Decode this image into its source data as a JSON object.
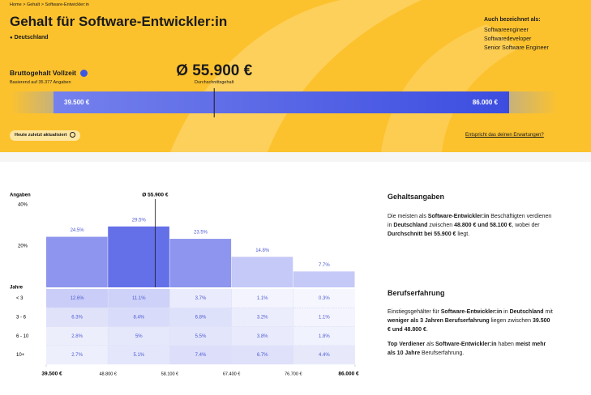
{
  "header": {
    "breadcrumb": [
      "Home",
      "Gehalt",
      "Software-Entwickler:in"
    ],
    "breadcrumb_separator": ">",
    "title": "Gehalt für Software-Entwickler:in",
    "location": "Deutschland",
    "aliases_heading": "Auch bezeichnet als:",
    "aliases": [
      "Softwareengineer",
      "Softwaredeveloper",
      "Senior Software Engineer"
    ]
  },
  "salary": {
    "label": "Bruttogehalt Vollzeit",
    "basis": "Basierend auf 35.377 Angaben",
    "average": {
      "value": 55900,
      "label": "Ø 55.900 €"
    },
    "average_caption": "Durchschnittsgehalt",
    "min": {
      "value": 39500,
      "label": "39.500 €"
    },
    "max": {
      "value": 86000,
      "label": "86.000 €"
    },
    "updated": "Heute zuletzt aktualisiert",
    "feedback_link": "Entspricht das deinen Erwartungen?"
  },
  "chart_data": {
    "type": "histogram",
    "y_label": "Angaben",
    "rows_label": "Jahre",
    "bins": [
      39500,
      48800,
      58100,
      67400,
      76700,
      86000
    ],
    "values": [
      24.5,
      29.5,
      23.5,
      14.8,
      7.7
    ],
    "value_labels": [
      "24.5%",
      "29.5%",
      "23.5%",
      "14.8%",
      "7.7%"
    ],
    "colors": [
      "#8d95ee",
      "#6470e8",
      "#8d95ee",
      "#c5c9f7",
      "#c5c9f7"
    ],
    "ylim": [
      0,
      40
    ],
    "yticks": [
      {
        "value": 20,
        "label": "20%"
      },
      {
        "value": 40,
        "label": "40%"
      }
    ],
    "xlim": [
      39500,
      86000
    ],
    "xticks": [
      {
        "value": 39500,
        "label": "39.500 €"
      },
      {
        "value": 48800,
        "label": "48.800 €"
      },
      {
        "value": 58100,
        "label": "58.100 €"
      },
      {
        "value": 67400,
        "label": "67.400 €"
      },
      {
        "value": 76700,
        "label": "76.700 €"
      },
      {
        "value": 86000,
        "label": "86.000 €"
      }
    ],
    "average": {
      "value": 55900,
      "label": "Ø 55.900 €"
    },
    "heatmap": {
      "rows": [
        "< 3",
        "3 - 6",
        "6 - 10",
        "10+"
      ],
      "color": "#6470e8",
      "values": [
        [
          12.6,
          11.1,
          3.7,
          1.1,
          0.3
        ],
        [
          6.3,
          8.4,
          6.8,
          3.2,
          1.1
        ],
        [
          2.8,
          5,
          5.5,
          3.8,
          1.8
        ],
        [
          2.7,
          5.1,
          7.4,
          6.7,
          4.4
        ]
      ],
      "value_labels": [
        [
          "12.6%",
          "11.1%",
          "3.7%",
          "1.1%",
          "0.3%"
        ],
        [
          "6.3%",
          "8.4%",
          "6.8%",
          "3.2%",
          "1.1%"
        ],
        [
          "2.8%",
          "5%",
          "5.5%",
          "3.8%",
          "1.8%"
        ],
        [
          "2.7%",
          "5.1%",
          "7.4%",
          "6.7%",
          "4.4%"
        ]
      ]
    }
  },
  "sections": [
    {
      "heading": "Gehaltsangaben",
      "paragraphs": [
        [
          {
            "text": "Die meisten als "
          },
          {
            "text": "Software-Entwickler:in",
            "bold": true
          },
          {
            "text": " Beschäftigten verdienen in "
          },
          {
            "text": "Deutschland",
            "bold": true
          },
          {
            "text": " zwischen "
          },
          {
            "text": "48.800 € und 58.100 €",
            "bold": true
          },
          {
            "text": ", wobei der "
          },
          {
            "text": "Durchschnitt bei 55.900 €",
            "bold": true
          },
          {
            "text": " liegt."
          }
        ]
      ]
    },
    {
      "heading": "Berufserfahrung",
      "paragraphs": [
        [
          {
            "text": "Einstiegsgehälter für "
          },
          {
            "text": "Software-Entwickler:in",
            "bold": true
          },
          {
            "text": " in "
          },
          {
            "text": "Deutschland",
            "bold": true
          },
          {
            "text": " mit "
          },
          {
            "text": "weniger als 3 Jahren Berufserfahrung",
            "bold": true
          },
          {
            "text": " liegen zwischen "
          },
          {
            "text": "39.500 € und 48.800 €",
            "bold": true
          },
          {
            "text": "."
          }
        ],
        [
          {
            "text": "Top Verdiener",
            "bold": true
          },
          {
            "text": " als "
          },
          {
            "text": "Software-Entwickler:in",
            "bold": true
          },
          {
            "text": " haben "
          },
          {
            "text": "meist mehr als 10 Jahre",
            "bold": true
          },
          {
            "text": " Berufserfahrung."
          }
        ]
      ]
    }
  ]
}
